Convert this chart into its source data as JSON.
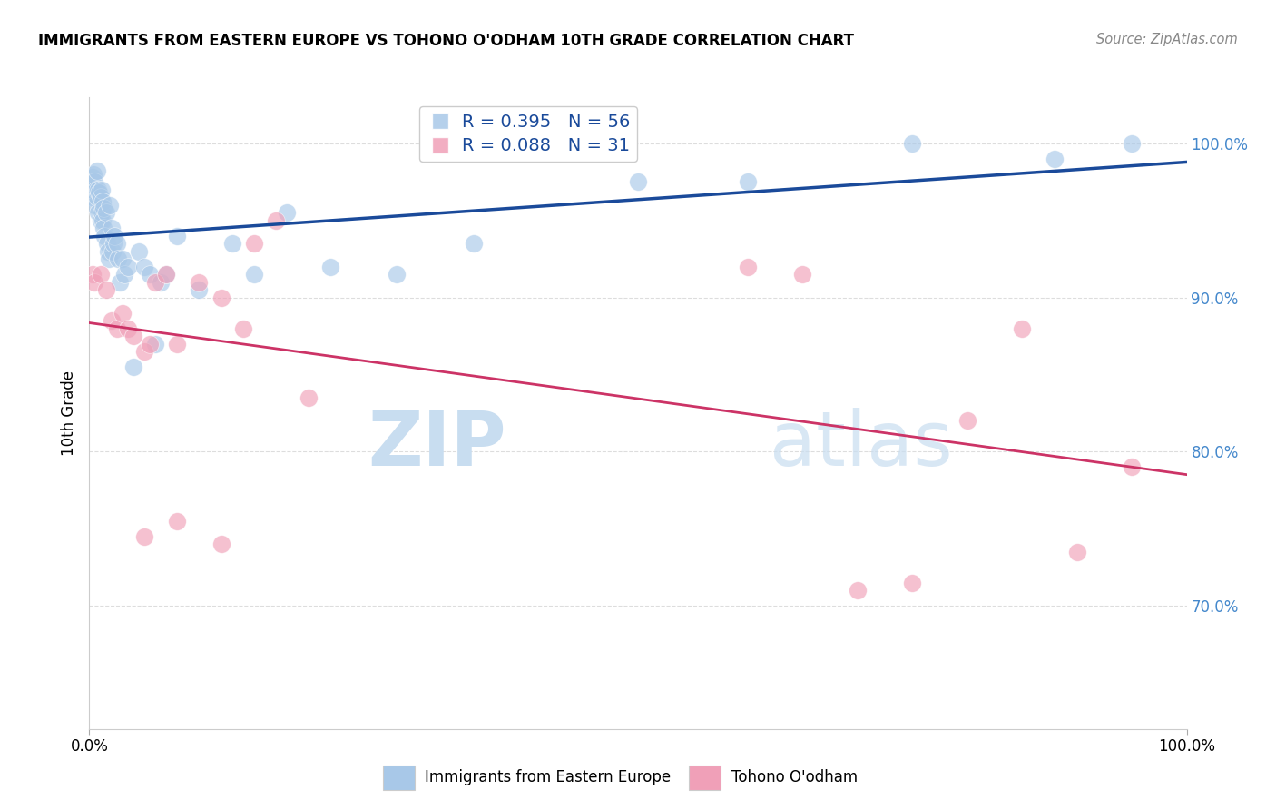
{
  "title": "IMMIGRANTS FROM EASTERN EUROPE VS TOHONO O'ODHAM 10TH GRADE CORRELATION CHART",
  "source": "Source: ZipAtlas.com",
  "ylabel": "10th Grade",
  "legend_blue_r": "R = 0.395",
  "legend_blue_n": "N = 56",
  "legend_pink_r": "R = 0.088",
  "legend_pink_n": "N = 31",
  "legend_blue_label": "Immigrants from Eastern Europe",
  "legend_pink_label": "Tohono O'odham",
  "blue_fill_color": "#a8c8e8",
  "blue_line_color": "#1a4a9a",
  "pink_fill_color": "#f0a0b8",
  "pink_line_color": "#cc3366",
  "right_tick_color": "#4488cc",
  "watermark_color": "#ddeeff",
  "watermark_zip": "ZIP",
  "watermark_atlas": "atlas",
  "background_color": "#ffffff",
  "grid_color": "#dddddd",
  "xlim": [
    0,
    100
  ],
  "ylim": [
    62,
    103
  ],
  "yticks": [
    70,
    80,
    90,
    100
  ],
  "ytick_labels": [
    "70.0%",
    "80.0%",
    "90.0%",
    "100.0%"
  ],
  "blue_x": [
    0.2,
    0.3,
    0.3,
    0.4,
    0.5,
    0.5,
    0.6,
    0.7,
    0.7,
    0.8,
    0.8,
    0.9,
    1.0,
    1.0,
    1.1,
    1.1,
    1.2,
    1.2,
    1.3,
    1.3,
    1.4,
    1.5,
    1.6,
    1.7,
    1.8,
    1.9,
    2.0,
    2.1,
    2.2,
    2.3,
    2.5,
    2.6,
    2.8,
    3.0,
    3.2,
    3.5,
    4.0,
    4.5,
    5.0,
    5.5,
    6.0,
    6.5,
    7.0,
    8.0,
    10.0,
    13.0,
    15.0,
    18.0,
    22.0,
    28.0,
    35.0,
    50.0,
    60.0,
    75.0,
    88.0,
    95.0
  ],
  "blue_y": [
    96.5,
    97.0,
    97.8,
    98.0,
    96.0,
    97.5,
    97.0,
    96.5,
    98.2,
    97.0,
    95.5,
    96.8,
    95.0,
    96.5,
    95.5,
    97.0,
    95.0,
    96.2,
    94.5,
    95.8,
    94.0,
    95.5,
    93.5,
    93.0,
    92.5,
    96.0,
    94.5,
    93.0,
    93.5,
    94.0,
    93.5,
    92.5,
    91.0,
    92.5,
    91.5,
    92.0,
    85.5,
    93.0,
    92.0,
    91.5,
    87.0,
    91.0,
    91.5,
    94.0,
    90.5,
    93.5,
    91.5,
    95.5,
    92.0,
    91.5,
    93.5,
    97.5,
    97.5,
    100.0,
    99.0,
    100.0
  ],
  "pink_x": [
    0.3,
    0.5,
    1.0,
    1.5,
    2.0,
    2.5,
    3.0,
    3.5,
    4.0,
    5.0,
    5.5,
    6.0,
    7.0,
    8.0,
    10.0,
    12.0,
    14.0,
    15.0,
    17.0,
    20.0,
    5.0,
    8.0,
    12.0,
    60.0,
    65.0,
    70.0,
    75.0,
    80.0,
    85.0,
    90.0,
    95.0
  ],
  "pink_y": [
    91.5,
    91.0,
    91.5,
    90.5,
    88.5,
    88.0,
    89.0,
    88.0,
    87.5,
    86.5,
    87.0,
    91.0,
    91.5,
    87.0,
    91.0,
    90.0,
    88.0,
    93.5,
    95.0,
    83.5,
    74.5,
    75.5,
    74.0,
    92.0,
    91.5,
    71.0,
    71.5,
    82.0,
    88.0,
    73.5,
    79.0
  ]
}
